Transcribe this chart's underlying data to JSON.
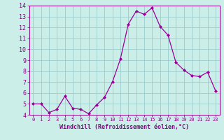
{
  "x": [
    0,
    1,
    2,
    3,
    4,
    5,
    6,
    7,
    8,
    9,
    10,
    11,
    12,
    13,
    14,
    15,
    16,
    17,
    18,
    19,
    20,
    21,
    22,
    23
  ],
  "y": [
    5.0,
    5.0,
    4.2,
    4.5,
    5.7,
    4.6,
    4.5,
    4.1,
    4.9,
    5.6,
    7.0,
    9.1,
    12.3,
    13.5,
    13.2,
    13.8,
    12.1,
    11.3,
    8.8,
    8.1,
    7.6,
    7.5,
    7.9,
    6.2
  ],
  "line_color": "#990099",
  "marker": "D",
  "marker_size": 2.0,
  "bg_color": "#cceee8",
  "grid_color": "#99cccc",
  "tick_label_color": "#880088",
  "xlabel": "Windchill (Refroidissement éolien,°C)",
  "xlabel_color": "#880088",
  "ylim": [
    4,
    14
  ],
  "xlim": [
    -0.5,
    23.5
  ],
  "yticks": [
    4,
    5,
    6,
    7,
    8,
    9,
    10,
    11,
    12,
    13,
    14
  ],
  "xticks": [
    0,
    1,
    2,
    3,
    4,
    5,
    6,
    7,
    8,
    9,
    10,
    11,
    12,
    13,
    14,
    15,
    16,
    17,
    18,
    19,
    20,
    21,
    22,
    23
  ]
}
